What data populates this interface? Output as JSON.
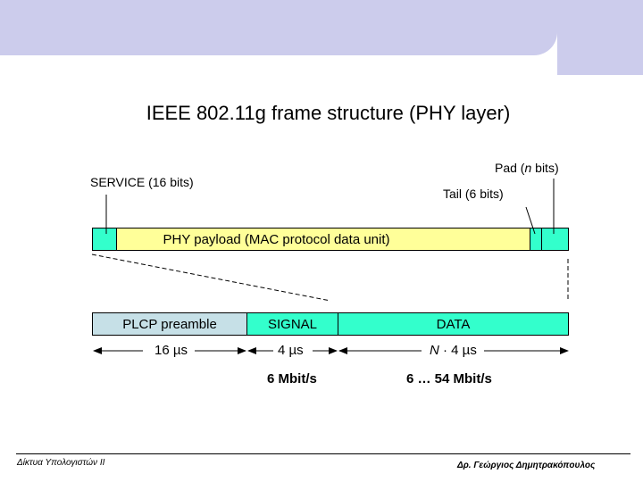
{
  "title": "IEEE 802.11g frame structure (PHY layer)",
  "labels": {
    "service": "SERVICE (16 bits)",
    "pad_prefix": "Pad (",
    "pad_n": "n",
    "pad_suffix": " bits)",
    "tail": "Tail (6 bits)"
  },
  "frame_top": {
    "payload": "PHY payload (MAC protocol data unit)"
  },
  "frame_bottom": {
    "preamble": "PLCP preamble",
    "signal": "SIGNAL",
    "data": "DATA"
  },
  "durations": {
    "preamble": "16 µs",
    "signal": "4 µs",
    "data_n": "N",
    "data_rest": " · 4 µs"
  },
  "rates": {
    "signal": "6 Mbit/s",
    "data": "6 … 54 Mbit/s"
  },
  "footer": {
    "left": "Δίκτυα Υπολογιστών ΙΙ",
    "right": "Δρ. Γεώργιος Δημητρακόπουλος"
  },
  "colors": {
    "banner": "#ccccec",
    "service_tail_pad": "#33ffcc",
    "payload": "#ffff99",
    "preamble": "#c6e0e7",
    "signal_data": "#33ffcc"
  }
}
